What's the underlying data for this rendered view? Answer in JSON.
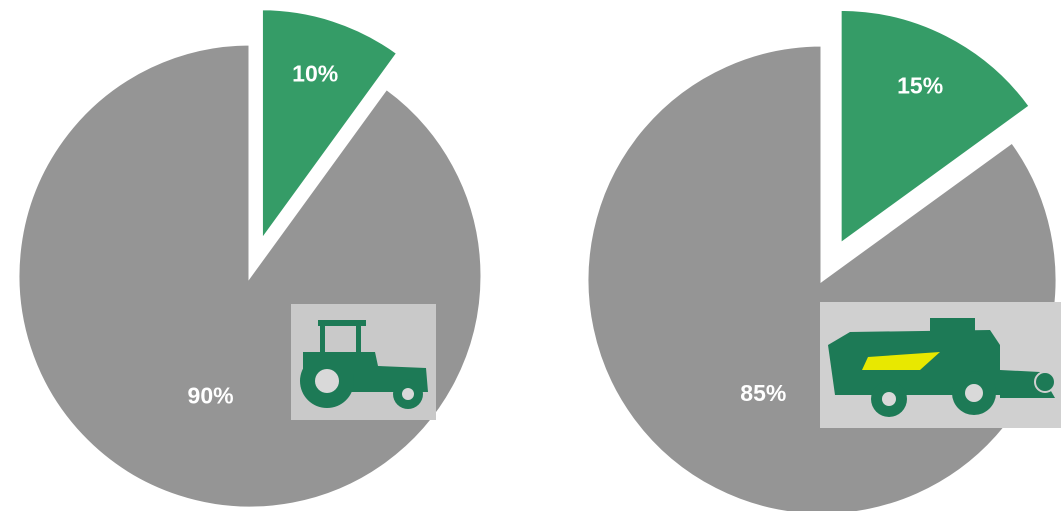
{
  "chart_data": [
    {
      "type": "pie",
      "categories": [
        null,
        null
      ],
      "values": [
        10,
        90
      ],
      "value_labels": [
        "10%",
        "90%"
      ],
      "colors": [
        "#359c67",
        "#959595"
      ]
    },
    {
      "type": "pie",
      "categories": [
        null,
        null
      ],
      "values": [
        15,
        85
      ],
      "value_labels": [
        "15%",
        "85%"
      ],
      "colors": [
        "#359c67",
        "#959595"
      ]
    }
  ]
}
